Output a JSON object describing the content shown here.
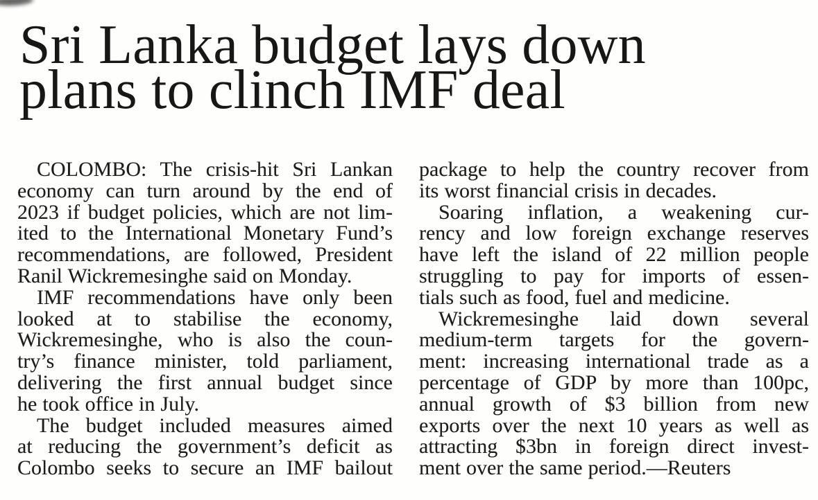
{
  "article": {
    "headline_lines": [
      "Sri Lanka budget lays down",
      "plans to clinch IMF deal"
    ],
    "columns": [
      {
        "lines": [
          "COLOMBO: The crisis-hit Sri Lankan",
          "economy can turn around by the end of",
          "2023 if budget policies, which are not lim-",
          "ited to the International Monetary Fund’s",
          "recommendations, are followed, President",
          "Ranil Wickremesinghe said on Monday.",
          "IMF recommendations have only been",
          "looked at to stabilise the economy,",
          "Wickremesinghe, who is also the coun-",
          "try’s finance minister, told parliament,",
          "delivering the first annual budget since",
          "he took office in July.",
          "The budget included measures aimed",
          "at reducing the government’s deficit as",
          "Colombo seeks to secure an IMF bailout"
        ]
      },
      {
        "lines": [
          "package to help the country recover from",
          "its worst financial crisis in decades.",
          "Soaring inflation, a weakening cur-",
          "rency and low foreign exchange reserves",
          "have left the island of 22 million people",
          "struggling to pay for imports of essen-",
          "tials such as food, fuel and medicine.",
          "Wickremesinghe laid down several",
          "medium-term targets for the govern-",
          "ment: increasing international trade as a",
          "percentage of GDP by more than 100pc,",
          "annual growth of $3 billion from new",
          "exports over the next 10 years as well as",
          "attracting $3bn in foreign direct invest-",
          "ment over the same period.—Reuters"
        ]
      }
    ]
  },
  "colors": {
    "text": "#1d1c1a",
    "background": "#fefefd"
  }
}
